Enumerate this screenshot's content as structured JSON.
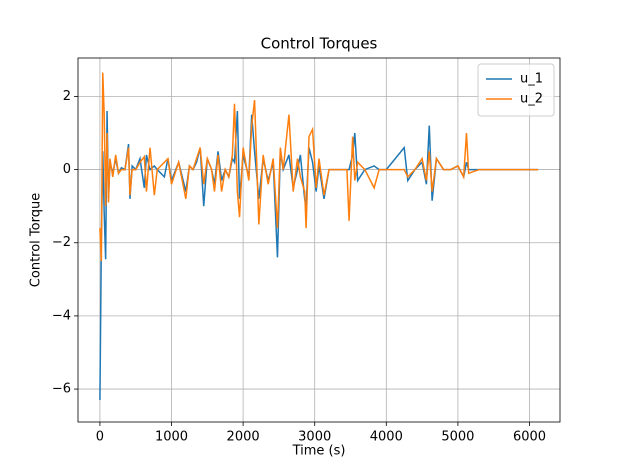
{
  "chart_data": {
    "type": "line",
    "title": "Control Torques",
    "x_label": "Time (s)",
    "y_label": "Control Torque",
    "x": [
      0,
      20,
      40,
      60,
      80,
      100,
      120,
      140,
      180,
      220,
      260,
      300,
      350,
      400,
      420,
      450,
      500,
      560,
      620,
      650,
      700,
      760,
      800,
      900,
      950,
      1000,
      1100,
      1200,
      1250,
      1300,
      1350,
      1400,
      1450,
      1500,
      1560,
      1600,
      1650,
      1700,
      1750,
      1800,
      1850,
      1880,
      1920,
      1950,
      2000,
      2080,
      2120,
      2160,
      2220,
      2280,
      2350,
      2420,
      2480,
      2520,
      2560,
      2640,
      2700,
      2760,
      2800,
      2860,
      2880,
      2920,
      2970,
      3020,
      3060,
      3130,
      3200,
      3300,
      3450,
      3480,
      3530,
      3560,
      3600,
      3700,
      3830,
      3900,
      4000,
      4250,
      4300,
      4400,
      4500,
      4560,
      4600,
      4640,
      4700,
      4800,
      4900,
      5000,
      5080,
      5120,
      5150,
      5300,
      5600,
      6120
    ],
    "series": [
      {
        "name": "u_1",
        "color": "#1f77b4",
        "values": [
          -6.3,
          -2.0,
          0.5,
          -1.2,
          -2.45,
          1.6,
          -0.8,
          0.2,
          -0.1,
          0.3,
          -0.1,
          0.05,
          0.0,
          0.7,
          -0.8,
          0.1,
          0.0,
          0.3,
          -0.5,
          0.4,
          0.0,
          0.1,
          0.0,
          -0.2,
          0.3,
          -0.3,
          0.2,
          -0.6,
          0.1,
          0.0,
          0.2,
          0.6,
          -1.0,
          0.3,
          0.0,
          -0.4,
          0.5,
          -0.3,
          0.0,
          -0.2,
          0.3,
          0.2,
          1.6,
          -0.8,
          0.4,
          -0.2,
          1.5,
          0.5,
          -0.8,
          0.3,
          -0.3,
          0.2,
          -2.4,
          0.5,
          0.0,
          0.4,
          -0.5,
          0.0,
          0.4,
          -0.8,
          -1.0,
          0.6,
          0.2,
          -0.6,
          0.1,
          -0.8,
          0.0,
          0.0,
          0.0,
          0.0,
          0.4,
          1.0,
          -0.3,
          0.0,
          0.1,
          0.0,
          0.0,
          0.6,
          -0.3,
          0.0,
          0.2,
          -0.4,
          1.2,
          -0.85,
          0.3,
          0.0,
          0.0,
          0.1,
          -0.2,
          0.2,
          0.0,
          0.0,
          0.0,
          0.0
        ]
      },
      {
        "name": "u_2",
        "color": "#ff7f0e",
        "values": [
          -1.6,
          -2.5,
          2.65,
          1.5,
          -1.0,
          1.0,
          -0.9,
          0.3,
          -0.2,
          0.4,
          -0.1,
          0.0,
          0.0,
          0.6,
          -0.7,
          0.0,
          0.0,
          0.2,
          0.35,
          -0.6,
          0.6,
          -0.7,
          0.0,
          0.2,
          0.3,
          -0.4,
          0.2,
          -0.8,
          0.1,
          0.0,
          0.3,
          0.6,
          -0.4,
          0.3,
          0.0,
          -0.6,
          0.4,
          -0.6,
          0.0,
          -0.2,
          0.4,
          1.8,
          -0.6,
          -1.3,
          0.6,
          -0.3,
          1.2,
          1.9,
          -1.5,
          0.4,
          -0.4,
          0.3,
          -1.6,
          0.6,
          0.0,
          1.5,
          -0.6,
          0.3,
          -0.2,
          -0.6,
          -1.6,
          0.9,
          1.1,
          -0.5,
          0.3,
          -0.7,
          0.0,
          0.0,
          0.0,
          -1.4,
          0.9,
          -0.3,
          0.2,
          0.0,
          -0.5,
          0.0,
          0.0,
          0.0,
          -0.2,
          0.0,
          0.3,
          -0.3,
          0.5,
          -0.6,
          0.3,
          0.0,
          0.0,
          0.1,
          -0.2,
          1.0,
          -0.1,
          0.0,
          0.0,
          0.0
        ]
      }
    ],
    "xlim": [
      -306,
      6426
    ],
    "xticks": [
      0,
      1000,
      2000,
      3000,
      4000,
      5000,
      6000
    ],
    "ylim": [
      -6.9,
      3.05
    ],
    "yticks": [
      {
        "value": -6,
        "label": "−6"
      },
      {
        "value": -4,
        "label": "−4"
      },
      {
        "value": -2,
        "label": "−2"
      },
      0,
      2
    ],
    "grid": true,
    "legend": "upper right"
  }
}
